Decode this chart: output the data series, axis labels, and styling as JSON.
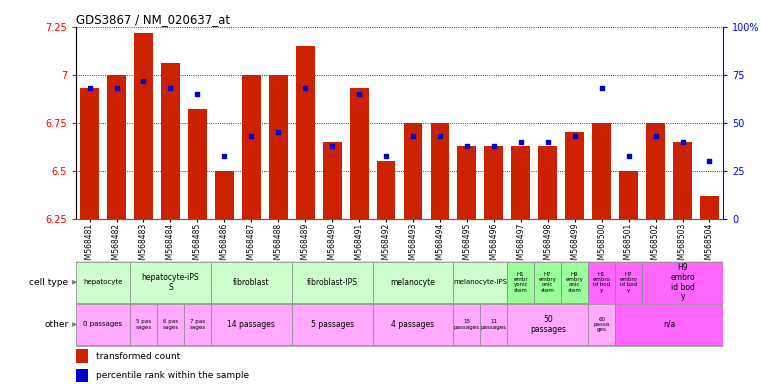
{
  "title": "GDS3867 / NM_020637_at",
  "samples": [
    "GSM568481",
    "GSM568482",
    "GSM568483",
    "GSM568484",
    "GSM568485",
    "GSM568486",
    "GSM568487",
    "GSM568488",
    "GSM568489",
    "GSM568490",
    "GSM568491",
    "GSM568492",
    "GSM568493",
    "GSM568494",
    "GSM568495",
    "GSM568496",
    "GSM568497",
    "GSM568498",
    "GSM568499",
    "GSM568500",
    "GSM568501",
    "GSM568502",
    "GSM568503",
    "GSM568504"
  ],
  "bar_values": [
    6.93,
    7.0,
    7.22,
    7.06,
    6.82,
    6.5,
    7.0,
    7.0,
    7.15,
    6.65,
    6.93,
    6.55,
    6.75,
    6.75,
    6.63,
    6.63,
    6.63,
    6.63,
    6.7,
    6.75,
    6.5,
    6.75,
    6.65,
    6.37
  ],
  "percentile_values": [
    68,
    68,
    72,
    68,
    65,
    33,
    43,
    45,
    68,
    38,
    65,
    33,
    43,
    43,
    38,
    38,
    40,
    40,
    43,
    68,
    33,
    43,
    40,
    30
  ],
  "ymin": 6.25,
  "ymax": 7.25,
  "yticks": [
    6.25,
    6.5,
    6.75,
    7.0,
    7.25
  ],
  "ytick_labels": [
    "6.25",
    "6.5",
    "6.75",
    "7",
    "7.25"
  ],
  "right_yticks": [
    0,
    25,
    50,
    75,
    100
  ],
  "right_ytick_labels": [
    "0",
    "25",
    "50",
    "75",
    "100%"
  ],
  "bar_color": "#cc2200",
  "dot_color": "#0000cc",
  "cell_groups": [
    {
      "start": 0,
      "end": 2,
      "label": "hepatocyte",
      "color": "#ccffcc"
    },
    {
      "start": 2,
      "end": 5,
      "label": "hepatocyte-iPS\nS",
      "color": "#ccffcc"
    },
    {
      "start": 5,
      "end": 8,
      "label": "fibroblast",
      "color": "#ccffcc"
    },
    {
      "start": 8,
      "end": 11,
      "label": "fibroblast-IPS",
      "color": "#ccffcc"
    },
    {
      "start": 11,
      "end": 14,
      "label": "melanocyte",
      "color": "#ccffcc"
    },
    {
      "start": 14,
      "end": 16,
      "label": "melanocyte-IPS",
      "color": "#ccffcc"
    },
    {
      "start": 16,
      "end": 17,
      "label": "H1\nembr\nyonic\nstem",
      "color": "#99ff99"
    },
    {
      "start": 17,
      "end": 18,
      "label": "H7\nembry\nonic\nstem",
      "color": "#99ff99"
    },
    {
      "start": 18,
      "end": 19,
      "label": "H9\nembry\nonic\nstem",
      "color": "#99ff99"
    },
    {
      "start": 19,
      "end": 20,
      "label": "H1\nembro\nid bod\ny",
      "color": "#ff66ff"
    },
    {
      "start": 20,
      "end": 21,
      "label": "H7\nembro\nid bod\ny",
      "color": "#ff66ff"
    },
    {
      "start": 21,
      "end": 24,
      "label": "H9\nembro\nid bod\ny",
      "color": "#ff66ff"
    }
  ],
  "other_groups": [
    {
      "start": 0,
      "end": 2,
      "label": "0 passages",
      "color": "#ffaaff"
    },
    {
      "start": 2,
      "end": 3,
      "label": "5 pas\nsages",
      "color": "#ffaaff"
    },
    {
      "start": 3,
      "end": 4,
      "label": "6 pas\nsages",
      "color": "#ffaaff"
    },
    {
      "start": 4,
      "end": 5,
      "label": "7 pas\nsages",
      "color": "#ffaaff"
    },
    {
      "start": 5,
      "end": 8,
      "label": "14 passages",
      "color": "#ffaaff"
    },
    {
      "start": 8,
      "end": 11,
      "label": "5 passages",
      "color": "#ffaaff"
    },
    {
      "start": 11,
      "end": 14,
      "label": "4 passages",
      "color": "#ffaaff"
    },
    {
      "start": 14,
      "end": 15,
      "label": "15\npassages",
      "color": "#ffaaff"
    },
    {
      "start": 15,
      "end": 16,
      "label": "11\npassages",
      "color": "#ffaaff"
    },
    {
      "start": 16,
      "end": 19,
      "label": "50\npassages",
      "color": "#ffaaff"
    },
    {
      "start": 19,
      "end": 20,
      "label": "60\npassa\nges",
      "color": "#ffaaff"
    },
    {
      "start": 20,
      "end": 24,
      "label": "n/a",
      "color": "#ff66ff"
    }
  ]
}
